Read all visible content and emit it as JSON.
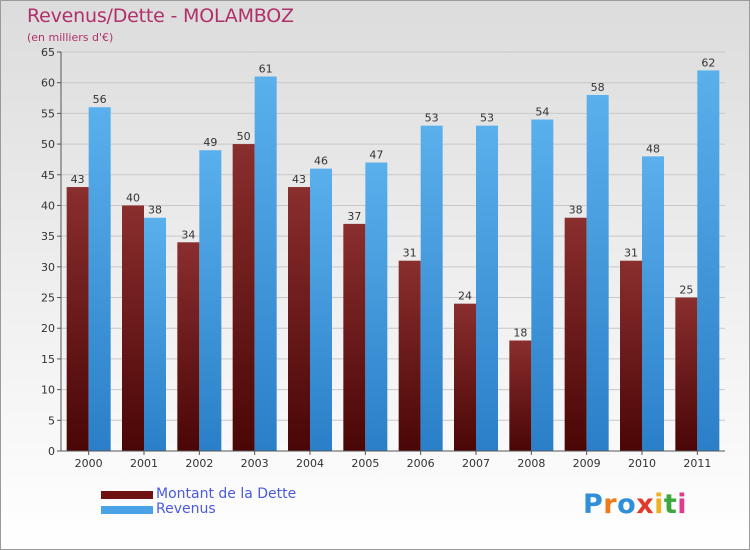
{
  "header": {
    "title": "Revenus/Dette - MOLAMBOZ",
    "subtitle": "(en milliers d'€)"
  },
  "chart_data": {
    "type": "bar",
    "categories": [
      "2000",
      "2001",
      "2002",
      "2003",
      "2004",
      "2005",
      "2006",
      "2007",
      "2008",
      "2009",
      "2010",
      "2011"
    ],
    "series": [
      {
        "name": "Montant de la Dette",
        "color": "#7a1c1c",
        "values": [
          43,
          40,
          34,
          50,
          43,
          37,
          31,
          24,
          18,
          38,
          31,
          25
        ]
      },
      {
        "name": "Revenus",
        "color": "#3d9be0",
        "values": [
          56,
          38,
          49,
          61,
          46,
          47,
          53,
          53,
          54,
          58,
          48,
          62
        ]
      }
    ],
    "ylim": [
      0,
      65
    ],
    "yticks": [
      0,
      5,
      10,
      15,
      20,
      25,
      30,
      35,
      40,
      45,
      50,
      55,
      60,
      65
    ],
    "grid": true,
    "legend_position": "bottom-left"
  },
  "legend": {
    "items": [
      {
        "label": "Montant de la Dette",
        "color": "#6e1212"
      },
      {
        "label": "Revenus",
        "color": "#4aa3e6"
      }
    ]
  },
  "logo": {
    "letters": [
      {
        "ch": "P",
        "color": "#2f8fd8"
      },
      {
        "ch": "r",
        "color": "#f07a1a"
      },
      {
        "ch": "o",
        "color": "#2f8fd8"
      },
      {
        "ch": "x",
        "color": "#e23a2a"
      },
      {
        "ch": "i",
        "color": "#f0b020"
      },
      {
        "ch": "t",
        "color": "#3aa83a"
      },
      {
        "ch": "i",
        "color": "#e23a8a"
      }
    ]
  }
}
